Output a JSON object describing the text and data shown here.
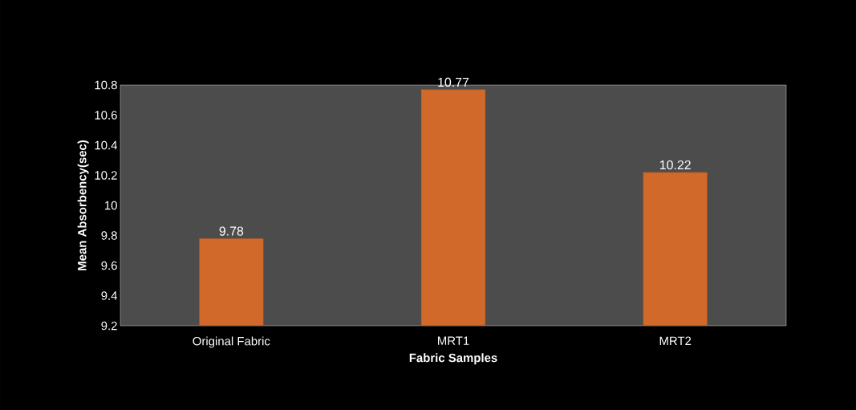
{
  "chart_data": {
    "type": "bar",
    "categories": [
      "Original Fabric",
      "MRT1",
      "MRT2"
    ],
    "values": [
      9.78,
      10.77,
      10.22
    ],
    "color": "#d0692a",
    "data_labels": true,
    "xlabel": "Fabric Samples",
    "ylabel": "Mean Absorbency(sec)",
    "ylim": [
      9.2,
      10.8
    ],
    "yticks": [
      9.2,
      9.4,
      9.6,
      9.8,
      10,
      10.2,
      10.4,
      10.6,
      10.8
    ]
  }
}
